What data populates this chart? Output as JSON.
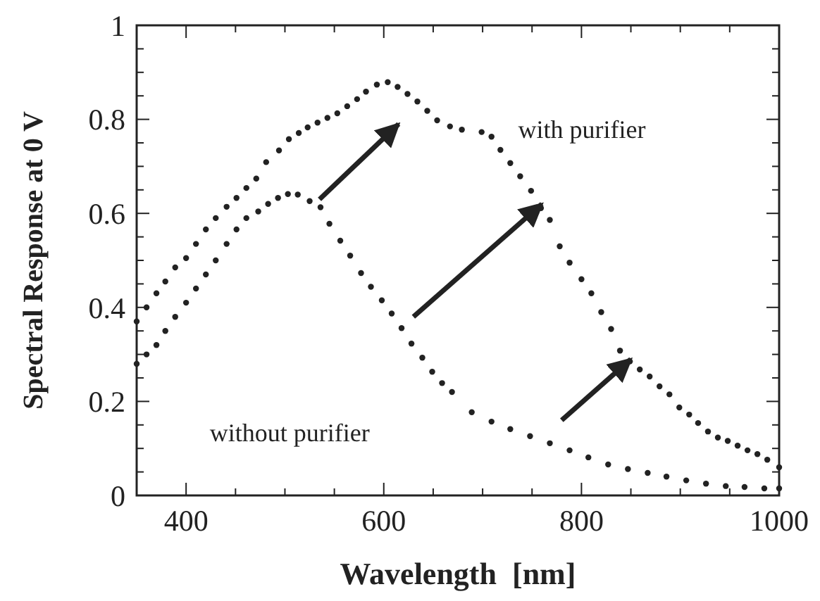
{
  "chart_data": {
    "type": "scatter",
    "xlabel": "Wavelength  [nm]",
    "ylabel": "Spectral Response at 0 V",
    "xlim": [
      350,
      1000
    ],
    "ylim": [
      0,
      1
    ],
    "marker": "circle",
    "grid": false,
    "xticks": [
      {
        "value": 350,
        "label": null
      },
      400,
      {
        "value": 450,
        "label": null
      },
      {
        "value": 500,
        "label": null
      },
      {
        "value": 550,
        "label": null
      },
      600,
      {
        "value": 650,
        "label": null
      },
      {
        "value": 700,
        "label": null
      },
      {
        "value": 750,
        "label": null
      },
      800,
      {
        "value": 850,
        "label": null
      },
      {
        "value": 900,
        "label": null
      },
      {
        "value": 950,
        "label": null
      },
      1000
    ],
    "yticks": [
      0,
      {
        "value": 0.05,
        "label": null
      },
      {
        "value": 0.1,
        "label": null
      },
      {
        "value": 0.15,
        "label": null
      },
      0.2,
      {
        "value": 0.25,
        "label": null
      },
      {
        "value": 0.3,
        "label": null
      },
      {
        "value": 0.35,
        "label": null
      },
      0.4,
      {
        "value": 0.45,
        "label": null
      },
      {
        "value": 0.5,
        "label": null
      },
      {
        "value": 0.55,
        "label": null
      },
      0.6,
      {
        "value": 0.65,
        "label": null
      },
      {
        "value": 0.7,
        "label": null
      },
      {
        "value": 0.75,
        "label": null
      },
      0.8,
      {
        "value": 0.85,
        "label": null
      },
      {
        "value": 0.9,
        "label": null
      },
      {
        "value": 0.95,
        "label": null
      },
      1
    ],
    "series": [
      {
        "name": "without purifier",
        "color": "#222222",
        "x": [
          350,
          360,
          370,
          379,
          389,
          400,
          410,
          420,
          430,
          441,
          451,
          461,
          473,
          483,
          493,
          503,
          513,
          525,
          536,
          545,
          556,
          566,
          577,
          587,
          598,
          608,
          618,
          628,
          639,
          649,
          659,
          669,
          689,
          709,
          728,
          748,
          768,
          788,
          807,
          827,
          847,
          867,
          886,
          906,
          926,
          946,
          965,
          985,
          1000
        ],
        "values": [
          0.28,
          0.3,
          0.32,
          0.35,
          0.38,
          0.41,
          0.44,
          0.47,
          0.5,
          0.535,
          0.566,
          0.59,
          0.604,
          0.62,
          0.633,
          0.641,
          0.64,
          0.626,
          0.613,
          0.578,
          0.542,
          0.51,
          0.473,
          0.444,
          0.415,
          0.387,
          0.356,
          0.323,
          0.293,
          0.263,
          0.239,
          0.22,
          0.177,
          0.157,
          0.141,
          0.126,
          0.111,
          0.096,
          0.081,
          0.066,
          0.056,
          0.048,
          0.04,
          0.032,
          0.025,
          0.02,
          0.018,
          0.015,
          0.015
        ]
      },
      {
        "name": "with purifier",
        "color": "#222222",
        "x": [
          350,
          360,
          370,
          379,
          389,
          400,
          410,
          420,
          430,
          441,
          451,
          461,
          471,
          481,
          494,
          504,
          514,
          523,
          533,
          543,
          553,
          563,
          573,
          582,
          593,
          604,
          614,
          624,
          634,
          644,
          654,
          667,
          679,
          699,
          709,
          718,
          728,
          738,
          749,
          759,
          768,
          778,
          788,
          800,
          810,
          820,
          830,
          839,
          849,
          859,
          869,
          879,
          889,
          899,
          909,
          918,
          928,
          938,
          948,
          958,
          968,
          978,
          988,
          1000
        ],
        "values": [
          0.37,
          0.4,
          0.43,
          0.455,
          0.485,
          0.505,
          0.535,
          0.566,
          0.59,
          0.614,
          0.633,
          0.654,
          0.674,
          0.709,
          0.734,
          0.758,
          0.771,
          0.783,
          0.793,
          0.803,
          0.813,
          0.828,
          0.843,
          0.859,
          0.874,
          0.879,
          0.869,
          0.854,
          0.838,
          0.818,
          0.798,
          0.785,
          0.778,
          0.773,
          0.763,
          0.735,
          0.707,
          0.679,
          0.648,
          0.611,
          0.586,
          0.53,
          0.495,
          0.46,
          0.43,
          0.39,
          0.354,
          0.308,
          0.285,
          0.268,
          0.253,
          0.232,
          0.215,
          0.187,
          0.172,
          0.154,
          0.136,
          0.123,
          0.116,
          0.106,
          0.096,
          0.088,
          0.076,
          0.06
        ]
      }
    ]
  }
}
